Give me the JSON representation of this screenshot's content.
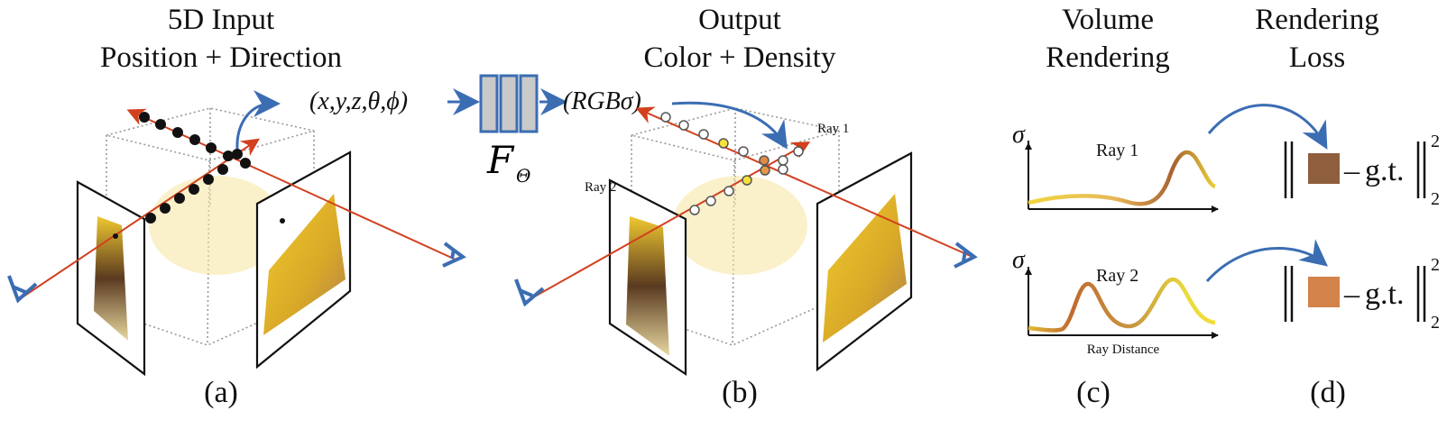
{
  "panels": {
    "a": {
      "title_1": "5D Input",
      "title_2": "Position + Direction",
      "caption": "(a)",
      "input_tuple": "(x,y,z,θ,ϕ)"
    },
    "network": {
      "label": "F",
      "subscript": "Θ"
    },
    "b": {
      "title_1": "Output",
      "title_2": "Color + Density",
      "caption": "(b)",
      "output_tuple": "(RGBσ)",
      "ray_1_label": "Ray 1",
      "ray_2_label": "Ray 2"
    },
    "c": {
      "title_1": "Volume",
      "title_2": "Rendering",
      "caption": "(c)",
      "y_axis_label": "σ",
      "x_axis_label": "Ray Distance",
      "plot_1_label": "Ray 1",
      "plot_2_label": "Ray 2"
    },
    "d": {
      "title_1": "Rendering",
      "title_2": "Loss",
      "caption": "(d)",
      "minus": "–",
      "gt_label": "g.t.",
      "superscript": "2",
      "subscript": "2"
    }
  },
  "colors": {
    "ray": "#d2401e",
    "arrow": "#3b6db3",
    "network_fill": "#c9c9c9",
    "ray_1_color": "#8f5e3c",
    "ray_2_color": "#d4834a",
    "curve_yellow": "#f2dc3a",
    "curve_brown": "#a8622f"
  }
}
